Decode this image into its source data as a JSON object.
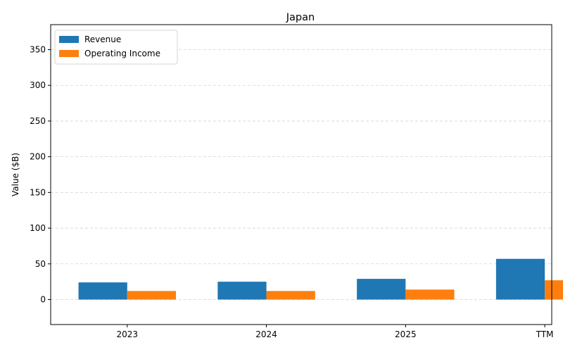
{
  "chart_data": {
    "type": "bar",
    "title": "Japan",
    "xlabel": "",
    "ylabel": "Value ($B)",
    "categories": [
      "2023",
      "2024",
      "2025",
      "TTM"
    ],
    "series": [
      {
        "name": "Revenue",
        "color": "#1f77b4",
        "values": [
          24,
          25,
          29,
          57
        ]
      },
      {
        "name": "Operating Income",
        "color": "#ff7f0e",
        "values": [
          12,
          12,
          14,
          27
        ]
      }
    ],
    "ylim": [
      -35,
      385
    ],
    "yticks": [
      "0",
      "50",
      "100",
      "150",
      "200",
      "250",
      "300",
      "350"
    ],
    "grid": true,
    "legend_position": "top-left"
  }
}
